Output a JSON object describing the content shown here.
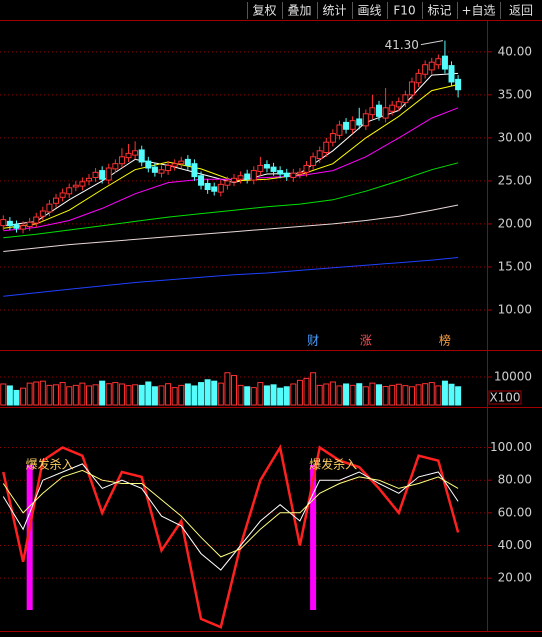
{
  "toolbar": [
    "复权",
    "叠加",
    "统计",
    "画线",
    "F10",
    "标记",
    "+自选",
    "返回"
  ],
  "chart_data": [
    {
      "type": "candlestick",
      "xlim": [
        -0.5,
        70.5
      ],
      "ylim": [
        5.35,
        43.7
      ],
      "yticks": [
        {
          "value": 10,
          "label": "10.00"
        },
        {
          "value": 15,
          "label": "15.00"
        },
        {
          "value": 20,
          "label": "20.00"
        },
        {
          "value": 25,
          "label": "25.00"
        },
        {
          "value": 30,
          "label": "30.00"
        },
        {
          "value": 35,
          "label": "35.00"
        },
        {
          "value": 40,
          "label": "40.00"
        }
      ],
      "grid": true,
      "up_color": "#ff3232",
      "down_color": "#54fcfc",
      "open": [
        19.8,
        20.3,
        19.9,
        19.4,
        19.7,
        20.1,
        20.9,
        21.4,
        22.4,
        23.1,
        23.5,
        24.3,
        24.4,
        25.0,
        25.4,
        26.2,
        25.1,
        26.4,
        27.0,
        27.7,
        28.0,
        28.6,
        27.3,
        26.6,
        25.9,
        26.2,
        26.7,
        27.0,
        27.5,
        27.0,
        25.6,
        24.7,
        24.3,
        23.7,
        24.5,
        24.9,
        25.2,
        25.8,
        25.1,
        26.1,
        26.9,
        26.6,
        26.2,
        25.9,
        25.4,
        25.8,
        26.0,
        26.8,
        27.6,
        28.3,
        29.5,
        30.3,
        31.8,
        31.0,
        32.2,
        31.4,
        32.7,
        33.8,
        32.3,
        33.1,
        33.6,
        34.1,
        35.0,
        36.4,
        37.4,
        37.9,
        38.5,
        39.5,
        38.4,
        36.8
      ],
      "high": [
        21.0,
        20.8,
        20.4,
        20.3,
        20.7,
        21.3,
        22.0,
        22.8,
        23.5,
        24.1,
        24.7,
        25.0,
        25.4,
        25.8,
        26.5,
        26.7,
        27.0,
        27.5,
        28.8,
        29.3,
        29.6,
        29.1,
        27.8,
        27.1,
        26.8,
        27.3,
        27.5,
        27.8,
        28.0,
        27.5,
        26.1,
        25.2,
        24.8,
        25.1,
        25.5,
        25.8,
        26.1,
        26.3,
        26.7,
        27.8,
        27.4,
        27.1,
        26.7,
        26.4,
        26.4,
        26.5,
        27.3,
        28.3,
        29.0,
        30.0,
        31.0,
        32.0,
        32.3,
        32.5,
        33.5,
        33.3,
        35.0,
        34.3,
        35.8,
        34.3,
        34.7,
        35.5,
        37.0,
        38.0,
        39.0,
        39.3,
        39.7,
        41.3,
        38.9,
        37.3
      ],
      "low": [
        19.3,
        19.3,
        19.0,
        18.9,
        19.2,
        19.6,
        20.4,
        20.9,
        21.9,
        22.6,
        23.0,
        23.8,
        23.9,
        24.5,
        24.9,
        24.7,
        24.6,
        25.9,
        26.5,
        27.2,
        27.5,
        26.7,
        26.0,
        25.5,
        25.4,
        25.7,
        26.2,
        26.5,
        26.3,
        25.0,
        24.0,
        23.5,
        23.3,
        23.2,
        24.0,
        24.4,
        24.7,
        24.7,
        24.6,
        25.6,
        26.0,
        25.6,
        25.3,
        25.0,
        24.9,
        25.3,
        25.5,
        26.3,
        27.1,
        27.8,
        29.0,
        29.8,
        30.5,
        30.5,
        31.0,
        30.9,
        32.2,
        32.0,
        31.8,
        32.6,
        33.1,
        33.6,
        34.5,
        35.9,
        36.9,
        37.4,
        38.0,
        37.5,
        36.0,
        34.7
      ],
      "close": [
        20.5,
        19.8,
        19.5,
        19.8,
        20.2,
        20.8,
        21.5,
        22.3,
        23.0,
        23.6,
        24.2,
        24.5,
        24.9,
        25.3,
        26.0,
        25.2,
        26.5,
        27.0,
        27.8,
        28.2,
        28.5,
        27.2,
        26.5,
        26.0,
        26.3,
        26.8,
        27.0,
        27.3,
        26.8,
        25.5,
        24.5,
        24.0,
        23.8,
        24.6,
        25.0,
        25.3,
        25.6,
        25.2,
        26.2,
        26.8,
        26.5,
        26.1,
        25.8,
        25.5,
        25.9,
        26.0,
        26.8,
        27.8,
        28.5,
        29.5,
        30.5,
        31.5,
        31.0,
        32.0,
        31.5,
        32.8,
        33.5,
        32.5,
        33.5,
        33.8,
        34.2,
        35.0,
        36.5,
        37.5,
        38.5,
        38.8,
        39.2,
        38.0,
        36.5,
        35.6
      ],
      "series": [
        {
          "color": "#ffffff",
          "x": [
            0,
            5,
            10,
            15,
            20,
            25,
            30,
            35,
            40,
            45,
            50,
            55,
            60,
            65,
            69
          ],
          "values": [
            19.8,
            20.3,
            22.8,
            25.0,
            27.5,
            26.8,
            25.8,
            24.8,
            25.8,
            25.9,
            28.5,
            31.8,
            33.2,
            37.3,
            37.5
          ]
        },
        {
          "color": "#ffff00",
          "x": [
            0,
            5,
            10,
            15,
            20,
            25,
            30,
            35,
            40,
            45,
            50,
            55,
            60,
            65,
            69
          ],
          "values": [
            19.5,
            20.0,
            21.6,
            24.0,
            26.3,
            27.2,
            26.4,
            25.0,
            25.2,
            25.7,
            27.0,
            30.0,
            32.5,
            35.5,
            36.2
          ]
        },
        {
          "color": "#ff00ff",
          "x": [
            0,
            5,
            10,
            15,
            20,
            25,
            30,
            35,
            40,
            45,
            50,
            55,
            60,
            65,
            69
          ],
          "values": [
            19.2,
            19.6,
            20.4,
            21.8,
            23.5,
            24.8,
            25.2,
            25.2,
            25.4,
            25.6,
            26.2,
            27.8,
            30.0,
            32.3,
            33.5
          ]
        },
        {
          "color": "#00e000",
          "x": [
            0,
            5,
            10,
            15,
            20,
            25,
            30,
            35,
            40,
            45,
            50,
            55,
            60,
            65,
            69
          ],
          "values": [
            18.4,
            18.8,
            19.3,
            19.8,
            20.3,
            20.8,
            21.2,
            21.6,
            22.0,
            22.3,
            22.8,
            23.8,
            25.0,
            26.3,
            27.1
          ]
        },
        {
          "color": "#e8d8d8",
          "x": [
            0,
            5,
            10,
            15,
            20,
            25,
            30,
            35,
            40,
            45,
            50,
            55,
            60,
            65,
            69
          ],
          "values": [
            16.8,
            17.2,
            17.6,
            17.9,
            18.2,
            18.5,
            18.8,
            19.1,
            19.4,
            19.7,
            20.0,
            20.4,
            20.9,
            21.6,
            22.2
          ]
        },
        {
          "color": "#2040ff",
          "x": [
            0,
            5,
            10,
            15,
            20,
            25,
            30,
            35,
            40,
            45,
            50,
            55,
            60,
            65,
            69
          ],
          "values": [
            11.6,
            12.0,
            12.4,
            12.8,
            13.2,
            13.5,
            13.8,
            14.1,
            14.3,
            14.6,
            14.9,
            15.2,
            15.5,
            15.8,
            16.1
          ]
        }
      ],
      "annotations": [
        {
          "label": "41.30",
          "value": 41.3,
          "x": 67
        }
      ],
      "markers": [
        {
          "label": "财",
          "x": 47,
          "color": "#4aa0ff"
        },
        {
          "label": "涨",
          "x": 55,
          "color": "#ff5050"
        },
        {
          "label": "榜",
          "x": 67,
          "color": "#ffa040"
        }
      ]
    },
    {
      "type": "bar",
      "xlim": [
        -0.5,
        70.5
      ],
      "ylim": [
        0,
        18900
      ],
      "yticks": [
        10000
      ],
      "unit": "X100",
      "values": [
        7500,
        6800,
        5200,
        6000,
        7800,
        8200,
        8500,
        7000,
        7200,
        8000,
        6500,
        7000,
        7800,
        6800,
        7200,
        8500,
        7600,
        8000,
        7500,
        6900,
        7200,
        7000,
        8200,
        6500,
        6800,
        7600,
        6200,
        7000,
        7500,
        6800,
        8000,
        9000,
        8500,
        7800,
        11500,
        10500,
        7000,
        6500,
        6200,
        8000,
        6800,
        7200,
        6000,
        6500,
        7500,
        8800,
        9500,
        11500,
        7000,
        7500,
        8200,
        6800,
        7500,
        7000,
        7600,
        6500,
        7800,
        7200,
        6600,
        7000,
        7400,
        6900,
        6500,
        7200,
        7600,
        8000,
        6800,
        8500,
        7400,
        6500
      ]
    },
    {
      "type": "line",
      "xlim": [
        -0.5,
        70.5
      ],
      "ylim": [
        -13,
        123
      ],
      "yticks": [
        {
          "value": 20,
          "label": "20.00"
        },
        {
          "value": 40,
          "label": "40.00"
        },
        {
          "value": 60,
          "label": "60.00"
        },
        {
          "value": 80,
          "label": "80.00"
        },
        {
          "value": 100,
          "label": "100.00"
        }
      ],
      "x": [
        0,
        3,
        6,
        9,
        12,
        15,
        18,
        21,
        24,
        27,
        30,
        33,
        36,
        39,
        42,
        45,
        48,
        51,
        54,
        57,
        60,
        63,
        66,
        69
      ],
      "series": [
        {
          "color": "#ff2020",
          "width": 2.5,
          "values": [
            85,
            30,
            92,
            100,
            95,
            60,
            85,
            82,
            37,
            55,
            -5,
            -10,
            40,
            80,
            100,
            40,
            100,
            92,
            88,
            75,
            60,
            95,
            92,
            48
          ]
        },
        {
          "color": "#ffffff",
          "width": 1,
          "values": [
            70,
            50,
            80,
            85,
            90,
            75,
            80,
            75,
            58,
            52,
            35,
            25,
            40,
            55,
            65,
            55,
            80,
            80,
            85,
            78,
            72,
            82,
            85,
            67
          ]
        },
        {
          "color": "#ffff80",
          "width": 1,
          "values": [
            78,
            60,
            72,
            82,
            86,
            80,
            78,
            78,
            68,
            58,
            45,
            33,
            38,
            50,
            60,
            60,
            72,
            78,
            82,
            80,
            75,
            78,
            82,
            75
          ]
        }
      ],
      "signals": [
        {
          "x": 4,
          "label": "爆发杀入"
        },
        {
          "x": 47,
          "label": "爆发杀入"
        }
      ],
      "signal_color": "#ff00ff"
    }
  ]
}
